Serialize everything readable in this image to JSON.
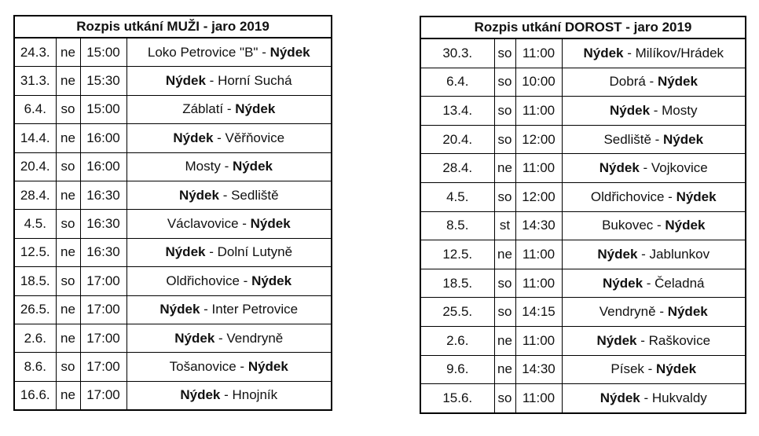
{
  "muzi": {
    "title": "Rozpis utkání MUŽI - jaro 2019",
    "rows": [
      {
        "date": "24.3.",
        "day": "ne",
        "time": "15:00",
        "home": "Loko Petrovice \"B\"",
        "away": "Nýdek",
        "bold": "away"
      },
      {
        "date": "31.3.",
        "day": "ne",
        "time": "15:30",
        "home": "Nýdek",
        "away": "Horní Suchá",
        "bold": "home"
      },
      {
        "date": "6.4.",
        "day": "so",
        "time": "15:00",
        "home": "Záblatí",
        "away": "Nýdek",
        "bold": "away"
      },
      {
        "date": "14.4.",
        "day": "ne",
        "time": "16:00",
        "home": "Nýdek",
        "away": "Věřňovice",
        "bold": "home"
      },
      {
        "date": "20.4.",
        "day": "so",
        "time": "16:00",
        "home": "Mosty",
        "away": "Nýdek",
        "bold": "away"
      },
      {
        "date": "28.4.",
        "day": "ne",
        "time": "16:30",
        "home": "Nýdek",
        "away": "Sedliště",
        "bold": "home"
      },
      {
        "date": "4.5.",
        "day": "so",
        "time": "16:30",
        "home": "Václavovice",
        "away": "Nýdek",
        "bold": "away"
      },
      {
        "date": "12.5.",
        "day": "ne",
        "time": "16:30",
        "home": "Nýdek",
        "away": "Dolní Lutyně",
        "bold": "home"
      },
      {
        "date": "18.5.",
        "day": "so",
        "time": "17:00",
        "home": "Oldřichovice",
        "away": "Nýdek",
        "bold": "away"
      },
      {
        "date": "26.5.",
        "day": "ne",
        "time": "17:00",
        "home": "Nýdek",
        "away": "Inter Petrovice",
        "bold": "home"
      },
      {
        "date": "2.6.",
        "day": "ne",
        "time": "17:00",
        "home": "Nýdek",
        "away": "Vendryně",
        "bold": "home"
      },
      {
        "date": "8.6.",
        "day": "so",
        "time": "17:00",
        "home": "Tošanovice",
        "away": "Nýdek",
        "bold": "away"
      },
      {
        "date": "16.6.",
        "day": "ne",
        "time": "17:00",
        "home": "Nýdek",
        "away": "Hnojník",
        "bold": "home"
      }
    ]
  },
  "dorost": {
    "title": "Rozpis utkání DOROST - jaro 2019",
    "rows": [
      {
        "date": "30.3.",
        "day": "so",
        "time": "11:00",
        "home": "Nýdek",
        "away": "Milíkov/Hrádek",
        "bold": "home"
      },
      {
        "date": "6.4.",
        "day": "so",
        "time": "10:00",
        "home": "Dobrá",
        "away": "Nýdek",
        "bold": "away"
      },
      {
        "date": "13.4.",
        "day": "so",
        "time": "11:00",
        "home": "Nýdek",
        "away": "Mosty",
        "bold": "home"
      },
      {
        "date": "20.4.",
        "day": "so",
        "time": "12:00",
        "home": "Sedliště",
        "away": "Nýdek",
        "bold": "away"
      },
      {
        "date": "28.4.",
        "day": "ne",
        "time": "11:00",
        "home": "Nýdek",
        "away": "Vojkovice",
        "bold": "home"
      },
      {
        "date": "4.5.",
        "day": "so",
        "time": "12:00",
        "home": "Oldřichovice",
        "away": "Nýdek",
        "bold": "away"
      },
      {
        "date": "8.5.",
        "day": "st",
        "time": "14:30",
        "home": "Bukovec",
        "away": "Nýdek",
        "bold": "away"
      },
      {
        "date": "12.5.",
        "day": "ne",
        "time": "11:00",
        "home": "Nýdek",
        "away": "Jablunkov",
        "bold": "home"
      },
      {
        "date": "18.5.",
        "day": "so",
        "time": "11:00",
        "home": "Nýdek",
        "away": "Čeladná",
        "bold": "home"
      },
      {
        "date": "25.5.",
        "day": "so",
        "time": "14:15",
        "home": "Vendryně",
        "away": "Nýdek",
        "bold": "away"
      },
      {
        "date": "2.6.",
        "day": "ne",
        "time": "11:00",
        "home": "Nýdek",
        "away": "Raškovice",
        "bold": "home"
      },
      {
        "date": "9.6.",
        "day": "ne",
        "time": "14:30",
        "home": "Písek",
        "away": "Nýdek",
        "bold": "away"
      },
      {
        "date": "15.6.",
        "day": "so",
        "time": "11:00",
        "home": "Nýdek",
        "away": "Hukvaldy",
        "bold": "home"
      }
    ]
  },
  "separator": " - "
}
